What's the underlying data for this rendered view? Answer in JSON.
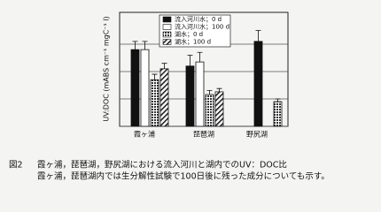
{
  "chart_data": {
    "type": "bar",
    "y_label": "UV:DOC (mABS cm⁻¹ mgC⁻¹ l)",
    "categories": [
      "霞ヶ浦",
      "琵琶湖",
      "野尻湖"
    ],
    "series": [
      {
        "name": "流入河川水；0 d",
        "color": "#111111",
        "values": [
          28,
          22,
          31
        ],
        "errors": [
          3,
          4,
          4
        ]
      },
      {
        "name": "流入河川水；100 d",
        "color": "#ffffff",
        "values": [
          28,
          23.5,
          null
        ],
        "errors": [
          3,
          3.5,
          null
        ]
      },
      {
        "name": "湖水；0 d",
        "color": "#444444",
        "pattern": "dots",
        "values": [
          17,
          11.6,
          9
        ],
        "errors": [
          2,
          1.5,
          1
        ]
      },
      {
        "name": "湖水；100 d",
        "color": "#ffffff",
        "pattern": "hatch",
        "values": [
          21,
          12.6,
          null
        ],
        "errors": [
          2,
          1.2,
          null
        ]
      }
    ],
    "ylim": [
      0,
      41.6
    ],
    "yticks": [
      0,
      10,
      20,
      30
    ],
    "grid": true,
    "caption": {
      "label": "図2",
      "lines": [
        "霞ヶ浦，琵琶湖，野尻湖における流入河川と湖内でのUV：DOC比",
        "霞ヶ浦，琵琶湖内では生分解性試験で100日後に残った成分についても示す。"
      ]
    }
  }
}
